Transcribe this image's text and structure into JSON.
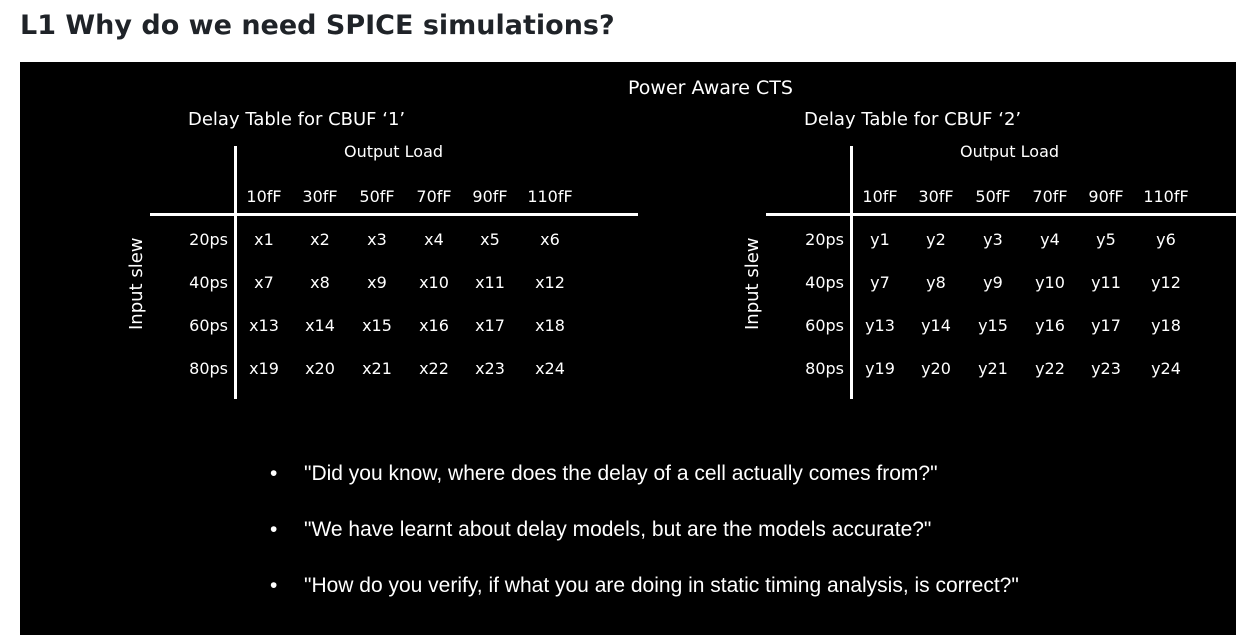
{
  "heading": "L1 Why do we need SPICE simulations?",
  "slide": {
    "title": "Power Aware CTS",
    "tables": [
      {
        "title": "Delay Table for CBUF ‘1’",
        "output_label": "Output Load",
        "side_label": "Input slew",
        "columns": [
          "10fF",
          "30fF",
          "50fF",
          "70fF",
          "90fF",
          "110fF"
        ],
        "rows": [
          {
            "slew": "20ps",
            "cells": [
              "x1",
              "x2",
              "x3",
              "x4",
              "x5",
              "x6"
            ]
          },
          {
            "slew": "40ps",
            "cells": [
              "x7",
              "x8",
              "x9",
              "x10",
              "x11",
              "x12"
            ]
          },
          {
            "slew": "60ps",
            "cells": [
              "x13",
              "x14",
              "x15",
              "x16",
              "x17",
              "x18"
            ]
          },
          {
            "slew": "80ps",
            "cells": [
              "x19",
              "x20",
              "x21",
              "x22",
              "x23",
              "x24"
            ]
          }
        ]
      },
      {
        "title": "Delay Table for CBUF ‘2’",
        "output_label": "Output Load",
        "side_label": "Input slew",
        "columns": [
          "10fF",
          "30fF",
          "50fF",
          "70fF",
          "90fF",
          "110fF"
        ],
        "rows": [
          {
            "slew": "20ps",
            "cells": [
              "y1",
              "y2",
              "y3",
              "y4",
              "y5",
              "y6"
            ]
          },
          {
            "slew": "40ps",
            "cells": [
              "y7",
              "y8",
              "y9",
              "y10",
              "y11",
              "y12"
            ]
          },
          {
            "slew": "60ps",
            "cells": [
              "y13",
              "y14",
              "y15",
              "y16",
              "y17",
              "y18"
            ]
          },
          {
            "slew": "80ps",
            "cells": [
              "y19",
              "y20",
              "y21",
              "y22",
              "y23",
              "y24"
            ]
          }
        ]
      }
    ],
    "bullet_marker": "•",
    "bullets": [
      "\"Did you know, where does the delay of a cell actually comes from?\"",
      "\"We have learnt about delay models, but are the models accurate?\"",
      "\"How do you verify, if what you are doing in static timing analysis, is correct?\""
    ]
  }
}
